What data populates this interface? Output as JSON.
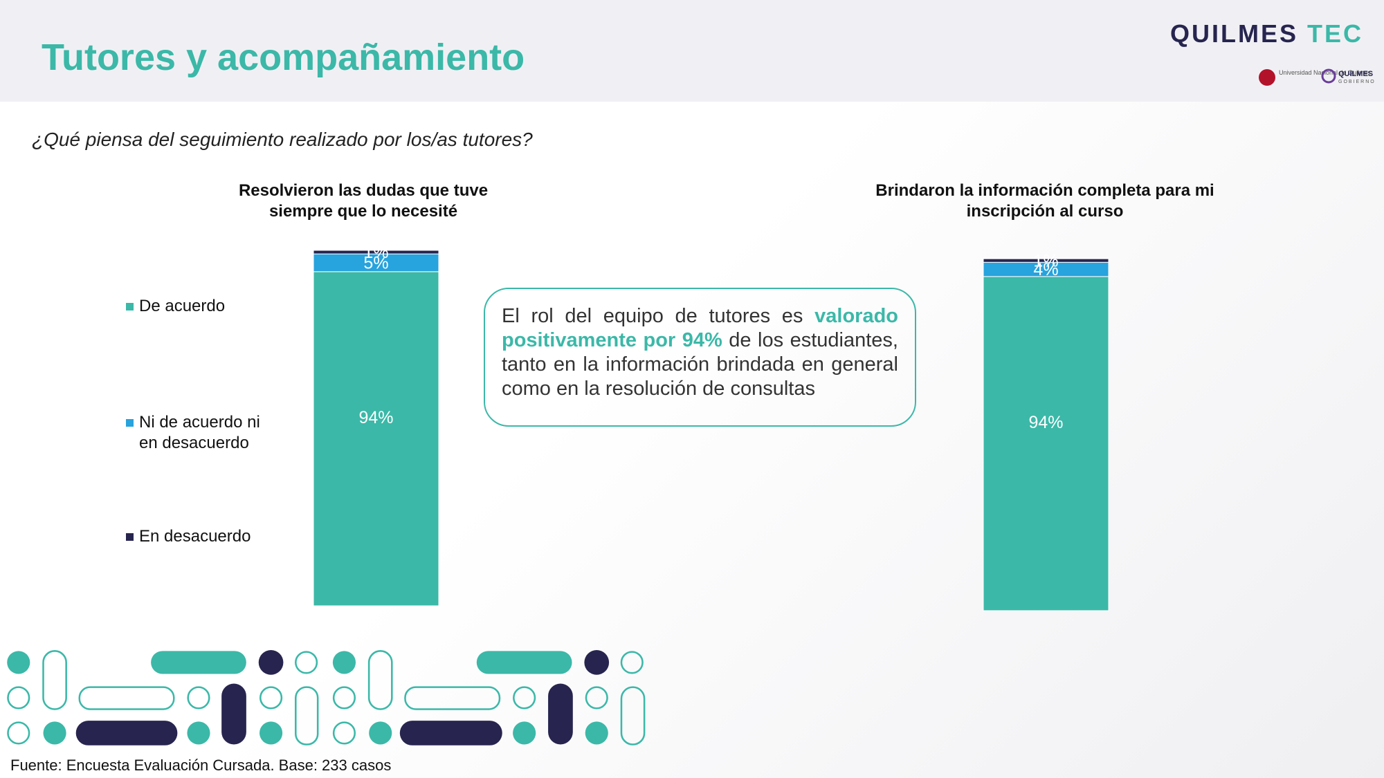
{
  "header": {
    "title": "Tutores y acompañamiento",
    "logo": {
      "name": "QUILMES",
      "accent": "TEC"
    },
    "partners": [
      "Universidad Nacional de Quilmes",
      "QUILMES",
      "GOBIERNO"
    ]
  },
  "question": "¿Qué piensa del seguimiento realizado por los/as tutores?",
  "chart_data": [
    {
      "type": "stacked-bar",
      "title": "Resolvieron las dudas que tuve siempre que lo necesité",
      "ylim": [
        0,
        100
      ],
      "series": [
        {
          "name": "De acuerdo",
          "color": "#3bb8a8",
          "values": [
            94
          ],
          "value_labels": [
            "94%"
          ]
        },
        {
          "name": "Ni de acuerdo ni en desacuerdo",
          "color": "#27a3dd",
          "values": [
            5
          ],
          "value_labels": [
            "5%"
          ]
        },
        {
          "name": "En desacuerdo",
          "color": "#27254f",
          "values": [
            1
          ],
          "value_labels": [
            "1%"
          ]
        }
      ]
    },
    {
      "type": "stacked-bar",
      "title": "Brindaron la información completa para mi inscripción al curso",
      "ylim": [
        0,
        100
      ],
      "series": [
        {
          "color": "#3bb8a8",
          "values": [
            94
          ],
          "value_labels": [
            "94%"
          ]
        },
        {
          "color": "#27a3dd",
          "values": [
            4
          ],
          "value_labels": [
            "4%"
          ]
        },
        {
          "color": "#27254f",
          "values": [
            1
          ],
          "value_labels": [
            "1%"
          ]
        }
      ]
    }
  ],
  "callout": [
    "El rol del equipo de tutores es ",
    "valorado positivamente por 94%",
    " de los estudiantes, tanto en la información brindada en general como en la resolución de consultas"
  ],
  "source": "Fuente: Encuesta Evaluación Cursada. Base: 233 casos"
}
